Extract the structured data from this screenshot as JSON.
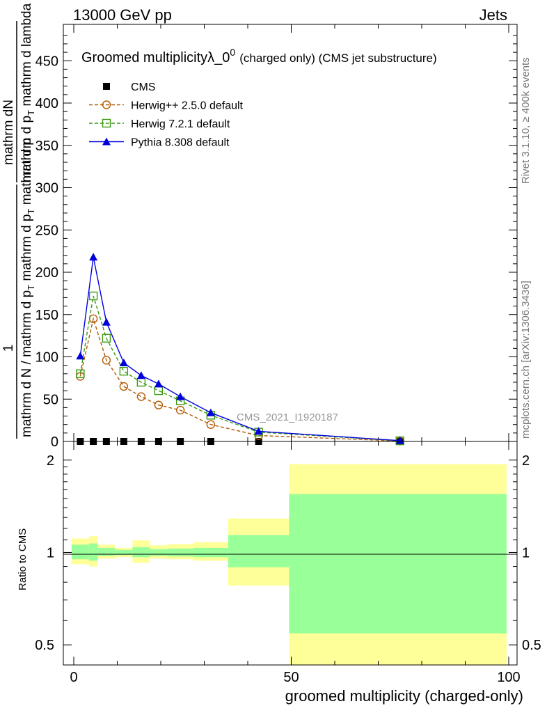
{
  "header": {
    "left": "13000 GeV pp",
    "right": "Jets"
  },
  "side_labels": {
    "rivet": "Rivet 3.1.10, ≥ 400k events",
    "mcplots": "mcplots.cern.ch [arXiv:1306.3436]"
  },
  "chart_data": [
    {
      "type": "line",
      "panel": "main",
      "title_main": "Groomed multiplicity",
      "title_lambda": "λ_0",
      "title_sup": "0",
      "title_suffix": "(charged only) (CMS jet substructure)",
      "watermark": "CMS_2021_I1920187",
      "ylabel": {
        "num": "mathrm dN",
        "den1": "mathrm d p",
        "den1_sub": "T",
        "den2": " mathrm d lambda",
        "pref_num": "1",
        "pref_den1": "mathrm d N / mathrm d p",
        "pref_den1_sub": "T",
        "pref_den2": " mathrm d p",
        "pref_den2_sub": "T",
        "pref_den3": " mathrm d p"
      },
      "ylim": [
        0,
        490
      ],
      "yticks": [
        0,
        50,
        100,
        150,
        200,
        250,
        300,
        350,
        400,
        450
      ],
      "xlim": [
        -2,
        100
      ],
      "legend_position": "top-left",
      "series": [
        {
          "name": "CMS",
          "color": "#000000",
          "marker": "filled-square",
          "x": [
            1.5,
            4.5,
            7.5,
            11.5,
            15.5,
            19.5,
            24.5,
            31.5,
            42.5,
            75
          ],
          "y": [
            0,
            0,
            0,
            0,
            0,
            0,
            0,
            0,
            0,
            0
          ]
        },
        {
          "name": "Herwig++ 2.5.0 default",
          "color": "#b35900",
          "marker": "open-circle",
          "dash": true,
          "x": [
            1.5,
            4.5,
            7.5,
            11.5,
            15.5,
            19.5,
            24.5,
            31.5,
            42.5,
            75
          ],
          "y": [
            77,
            145,
            96,
            65,
            53,
            43,
            37,
            20,
            7,
            0.5
          ]
        },
        {
          "name": "Herwig 7.2.1 default",
          "color": "#3a9a12",
          "marker": "open-square",
          "dash": true,
          "x": [
            1.5,
            4.5,
            7.5,
            11.5,
            15.5,
            19.5,
            24.5,
            31.5,
            42.5,
            75
          ],
          "y": [
            80,
            172,
            122,
            83,
            70,
            60,
            48,
            31,
            11,
            0.8
          ]
        },
        {
          "name": "Pythia 8.308 default",
          "color": "#0000dd",
          "marker": "filled-triangle",
          "dash": false,
          "x": [
            1.5,
            4.5,
            7.5,
            11.5,
            15.5,
            19.5,
            24.5,
            31.5,
            42.5,
            75
          ],
          "y": [
            101,
            218,
            141,
            93,
            78,
            68,
            53,
            34,
            12,
            1
          ]
        }
      ]
    },
    {
      "type": "area",
      "panel": "ratio",
      "ylabel": "Ratio to CMS",
      "xlabel": "groomed multiplicity (charged-only)",
      "log_scale_y": true,
      "ylim": [
        0.43,
        2.3
      ],
      "yticks": [
        0.5,
        1,
        2
      ],
      "xticks": [
        0,
        50,
        100
      ],
      "xlim": [
        -2,
        100
      ],
      "bins": [
        {
          "lo": -0.5,
          "hi": 3.5,
          "stat_lo": 0.95,
          "stat_hi": 1.06,
          "tot_lo": 0.915,
          "tot_hi": 1.11
        },
        {
          "lo": 3.5,
          "hi": 5.5,
          "stat_lo": 0.94,
          "stat_hi": 1.07,
          "tot_lo": 0.9,
          "tot_hi": 1.13
        },
        {
          "lo": 5.5,
          "hi": 9.5,
          "stat_lo": 0.975,
          "stat_hi": 1.035,
          "tot_lo": 0.955,
          "tot_hi": 1.06
        },
        {
          "lo": 9.5,
          "hi": 13.5,
          "stat_lo": 0.98,
          "stat_hi": 1.02,
          "tot_lo": 0.965,
          "tot_hi": 1.035
        },
        {
          "lo": 13.5,
          "hi": 17.5,
          "stat_lo": 0.965,
          "stat_hi": 1.04,
          "tot_lo": 0.925,
          "tot_hi": 1.095
        },
        {
          "lo": 17.5,
          "hi": 21.5,
          "stat_lo": 0.975,
          "stat_hi": 1.025,
          "tot_lo": 0.955,
          "tot_hi": 1.055
        },
        {
          "lo": 21.5,
          "hi": 27.5,
          "stat_lo": 0.97,
          "stat_hi": 1.03,
          "tot_lo": 0.95,
          "tot_hi": 1.065
        },
        {
          "lo": 27.5,
          "hi": 35.5,
          "stat_lo": 0.965,
          "stat_hi": 1.035,
          "tot_lo": 0.94,
          "tot_hi": 1.08
        },
        {
          "lo": 35.5,
          "hi": 49.5,
          "stat_lo": 0.895,
          "stat_hi": 1.14,
          "tot_lo": 0.78,
          "tot_hi": 1.29
        },
        {
          "lo": 49.5,
          "hi": 99.5,
          "stat_lo": 0.545,
          "stat_hi": 1.55,
          "tot_lo": 0.43,
          "tot_hi": 1.94
        }
      ],
      "colors": {
        "stat": "#99ff99",
        "total": "#ffff99"
      }
    }
  ]
}
